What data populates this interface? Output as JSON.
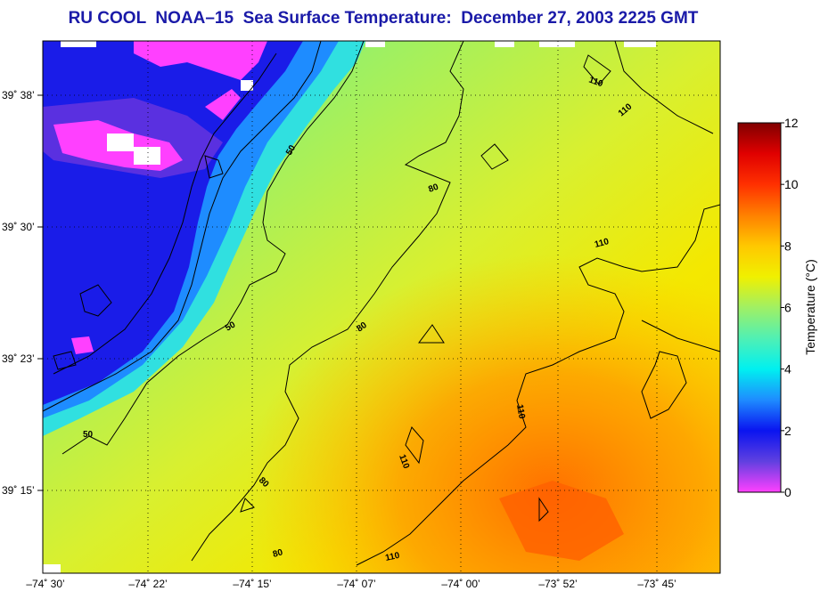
{
  "title": "RU COOL  NOAA–15  Sea Surface Temperature:  December 27, 2003 2225 GMT",
  "map": {
    "lat_ticks": [
      "39˚ 38’",
      "39˚ 30’",
      "39˚ 23’",
      "39˚ 15’"
    ],
    "lon_ticks": [
      "–74˚ 30’",
      "–74˚ 22’",
      "–74˚ 15’",
      "–74˚ 07’",
      "–74˚ 00’",
      "–73˚ 52’",
      "–73˚ 45’"
    ],
    "contour_labels": [
      "50",
      "50",
      "50",
      "80",
      "80",
      "80",
      "80",
      "110",
      "110",
      "110",
      "110",
      "110"
    ]
  },
  "colorbar": {
    "label": "Temperature (°C)",
    "ticks": [
      "0",
      "2",
      "4",
      "6",
      "8",
      "10",
      "12"
    ],
    "min": 0,
    "max": 12,
    "colors": [
      "#ff40ff",
      "#6040e0",
      "#0a14f0",
      "#1e8cff",
      "#00f0f0",
      "#50f0b4",
      "#a0f064",
      "#f0f000",
      "#ffc800",
      "#ff8000",
      "#ff3000",
      "#e00000",
      "#800000"
    ]
  }
}
